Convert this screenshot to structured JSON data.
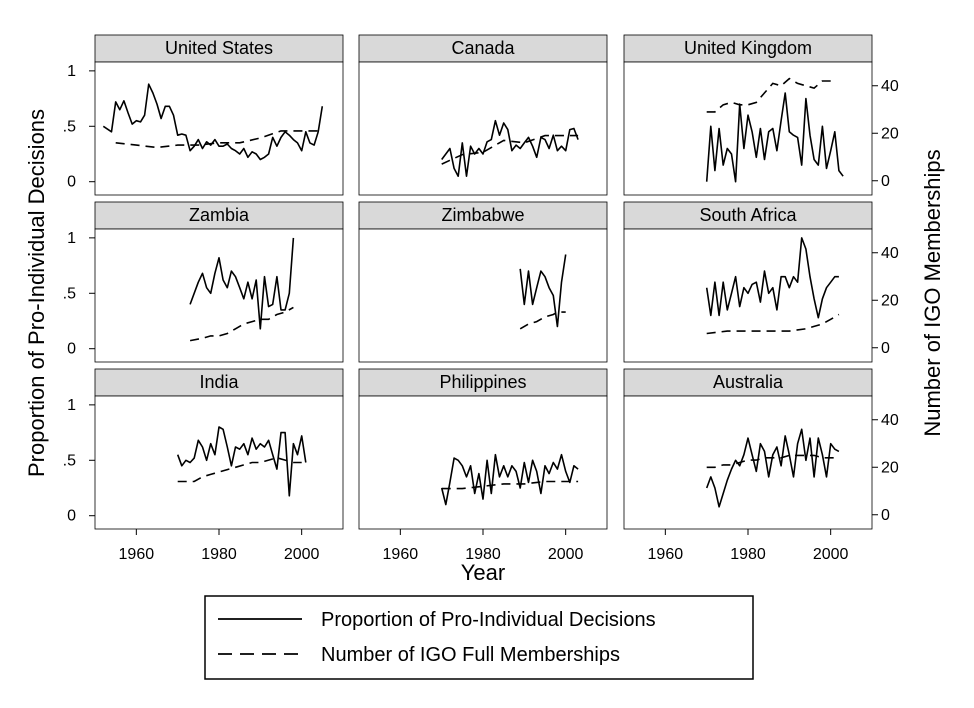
{
  "chart_data": {
    "type": "line",
    "xlabel": "Year",
    "ylabel_left": "Proportion of Pro-Individual Decisions",
    "ylabel_right": "Number of IGO Memberships",
    "xlim": [
      1950,
      2010
    ],
    "x_ticks": [
      1960,
      1980,
      2000
    ],
    "y_left_lim": [
      -0.12,
      1.08
    ],
    "y_left_ticks": [
      {
        "v": 0,
        "label": "0"
      },
      {
        "v": 0.5,
        "label": ".5"
      },
      {
        "v": 1,
        "label": "1"
      }
    ],
    "y_right_lim": [
      -6,
      50
    ],
    "y_right_ticks": [
      {
        "v": 0,
        "label": "0"
      },
      {
        "v": 20,
        "label": "20"
      },
      {
        "v": 40,
        "label": "40"
      }
    ],
    "grid": false,
    "legend": {
      "placement": "bottom",
      "entries": [
        {
          "label": "Proportion of Pro-Individual Decisions",
          "style": "solid"
        },
        {
          "label": "Number of IGO Full Memberships",
          "style": "dashed"
        }
      ]
    },
    "panels": [
      {
        "name": "United States",
        "proportion": {
          "x": [
            1952,
            1954,
            1955,
            1956,
            1957,
            1958,
            1959,
            1960,
            1961,
            1962,
            1963,
            1964,
            1965,
            1966,
            1967,
            1968,
            1969,
            1970,
            1971,
            1972,
            1973,
            1974,
            1975,
            1976,
            1977,
            1978,
            1979,
            1980,
            1981,
            1982,
            1983,
            1984,
            1985,
            1986,
            1987,
            1988,
            1989,
            1990,
            1991,
            1992,
            1993,
            1994,
            1995,
            1996,
            1997,
            1998,
            1999,
            2000,
            2001,
            2002,
            2003,
            2004,
            2005
          ],
          "y": [
            0.5,
            0.45,
            0.72,
            0.65,
            0.73,
            0.62,
            0.52,
            0.55,
            0.54,
            0.6,
            0.88,
            0.8,
            0.7,
            0.57,
            0.68,
            0.68,
            0.6,
            0.42,
            0.43,
            0.42,
            0.28,
            0.32,
            0.38,
            0.3,
            0.36,
            0.33,
            0.38,
            0.32,
            0.32,
            0.34,
            0.3,
            0.28,
            0.25,
            0.3,
            0.22,
            0.27,
            0.25,
            0.2,
            0.22,
            0.25,
            0.4,
            0.32,
            0.4,
            0.45,
            0.42,
            0.38,
            0.35,
            0.28,
            0.45,
            0.35,
            0.33,
            0.45,
            0.68
          ]
        },
        "igo": {
          "x": [
            1955,
            1960,
            1965,
            1970,
            1975,
            1980,
            1985,
            1990,
            1995,
            2000,
            2005
          ],
          "y": [
            16,
            15,
            14,
            15,
            15,
            16,
            16,
            18,
            21,
            21,
            21
          ]
        }
      },
      {
        "name": "Canada",
        "proportion": {
          "x": [
            1970,
            1971,
            1972,
            1973,
            1974,
            1975,
            1976,
            1977,
            1978,
            1979,
            1980,
            1981,
            1982,
            1983,
            1984,
            1985,
            1986,
            1987,
            1988,
            1989,
            1990,
            1991,
            1992,
            1993,
            1994,
            1995,
            1996,
            1997,
            1998,
            1999,
            2000,
            2001,
            2002,
            2003
          ],
          "y": [
            0.2,
            0.25,
            0.3,
            0.12,
            0.05,
            0.35,
            0.05,
            0.32,
            0.25,
            0.3,
            0.25,
            0.36,
            0.38,
            0.55,
            0.42,
            0.53,
            0.47,
            0.28,
            0.33,
            0.3,
            0.35,
            0.4,
            0.32,
            0.22,
            0.4,
            0.38,
            0.3,
            0.42,
            0.28,
            0.32,
            0.28,
            0.47,
            0.48,
            0.38
          ]
        },
        "igo": {
          "x": [
            1970,
            1975,
            1980,
            1985,
            1990,
            1995,
            2000,
            2003
          ],
          "y": [
            7,
            11,
            12,
            17,
            16,
            19,
            19,
            19
          ]
        }
      },
      {
        "name": "United Kingdom",
        "proportion": {
          "x": [
            1970,
            1971,
            1972,
            1973,
            1974,
            1975,
            1976,
            1977,
            1978,
            1979,
            1980,
            1981,
            1982,
            1983,
            1984,
            1985,
            1986,
            1987,
            1988,
            1989,
            1990,
            1991,
            1992,
            1993,
            1994,
            1995,
            1996,
            1997,
            1998,
            1999,
            2000,
            2001,
            2002,
            2003
          ],
          "y": [
            0.0,
            0.5,
            0.1,
            0.48,
            0.15,
            0.3,
            0.25,
            0.0,
            0.7,
            0.3,
            0.6,
            0.45,
            0.22,
            0.48,
            0.2,
            0.45,
            0.48,
            0.28,
            0.55,
            0.8,
            0.45,
            0.42,
            0.4,
            0.15,
            0.75,
            0.42,
            0.2,
            0.15,
            0.5,
            0.12,
            0.28,
            0.45,
            0.1,
            0.05
          ]
        },
        "igo": {
          "x": [
            1970,
            1972,
            1974,
            1976,
            1978,
            1980,
            1982,
            1984,
            1986,
            1988,
            1990,
            1992,
            1994,
            1996,
            1998,
            2000
          ],
          "y": [
            29,
            29,
            32,
            33,
            32,
            32,
            33,
            37,
            41,
            40,
            43,
            41,
            40,
            39,
            42,
            42
          ]
        }
      },
      {
        "name": "Zambia",
        "proportion": {
          "x": [
            1973,
            1975,
            1976,
            1977,
            1978,
            1979,
            1980,
            1981,
            1982,
            1983,
            1984,
            1985,
            1986,
            1987,
            1988,
            1989,
            1990,
            1991,
            1992,
            1993,
            1994,
            1995,
            1996,
            1997,
            1998
          ],
          "y": [
            0.4,
            0.6,
            0.68,
            0.55,
            0.5,
            0.68,
            0.82,
            0.62,
            0.55,
            0.7,
            0.65,
            0.55,
            0.45,
            0.6,
            0.45,
            0.62,
            0.18,
            0.65,
            0.38,
            0.4,
            0.65,
            0.35,
            0.35,
            0.5,
            1.0
          ]
        },
        "igo": {
          "x": [
            1973,
            1976,
            1978,
            1980,
            1982,
            1984,
            1986,
            1988,
            1990,
            1992,
            1994,
            1996,
            1998
          ],
          "y": [
            3,
            4,
            5,
            5,
            6,
            8,
            10,
            11,
            12,
            12,
            14,
            15,
            17
          ]
        }
      },
      {
        "name": "Zimbabwe",
        "proportion": {
          "x": [
            1989,
            1990,
            1991,
            1992,
            1993,
            1994,
            1995,
            1996,
            1997,
            1998,
            1999,
            2000
          ],
          "y": [
            0.72,
            0.4,
            0.7,
            0.4,
            0.55,
            0.7,
            0.65,
            0.55,
            0.48,
            0.2,
            0.6,
            0.85
          ]
        },
        "igo": {
          "x": [
            1989,
            1991,
            1993,
            1995,
            1997,
            1998,
            2000
          ],
          "y": [
            8,
            10,
            11,
            13,
            14,
            15,
            15
          ]
        }
      },
      {
        "name": "South Africa",
        "proportion": {
          "x": [
            1970,
            1971,
            1972,
            1973,
            1974,
            1975,
            1976,
            1977,
            1978,
            1979,
            1980,
            1981,
            1982,
            1983,
            1984,
            1985,
            1986,
            1987,
            1988,
            1989,
            1990,
            1991,
            1992,
            1993,
            1994,
            1995,
            1996,
            1997,
            1998,
            1999,
            2000,
            2001,
            2002
          ],
          "y": [
            0.55,
            0.3,
            0.6,
            0.3,
            0.6,
            0.35,
            0.5,
            0.65,
            0.38,
            0.55,
            0.5,
            0.58,
            0.6,
            0.42,
            0.7,
            0.5,
            0.55,
            0.35,
            0.65,
            0.65,
            0.55,
            0.65,
            0.6,
            1.0,
            0.9,
            0.65,
            0.45,
            0.28,
            0.45,
            0.55,
            0.6,
            0.65,
            0.65
          ]
        },
        "igo": {
          "x": [
            1970,
            1975,
            1980,
            1985,
            1990,
            1994,
            1996,
            1998,
            2000,
            2002
          ],
          "y": [
            6,
            7,
            7,
            7,
            7,
            8,
            9,
            10,
            12,
            14
          ]
        }
      },
      {
        "name": "India",
        "proportion": {
          "x": [
            1970,
            1971,
            1972,
            1973,
            1974,
            1975,
            1976,
            1977,
            1978,
            1979,
            1980,
            1981,
            1982,
            1983,
            1984,
            1985,
            1986,
            1987,
            1988,
            1989,
            1990,
            1991,
            1992,
            1993,
            1994,
            1995,
            1996,
            1997,
            1998,
            1999,
            2000,
            2001
          ],
          "y": [
            0.55,
            0.45,
            0.5,
            0.48,
            0.52,
            0.68,
            0.62,
            0.5,
            0.65,
            0.55,
            0.8,
            0.78,
            0.62,
            0.45,
            0.62,
            0.6,
            0.65,
            0.55,
            0.7,
            0.6,
            0.65,
            0.62,
            0.68,
            0.55,
            0.42,
            0.75,
            0.75,
            0.18,
            0.65,
            0.55,
            0.72,
            0.48
          ]
        },
        "igo": {
          "x": [
            1970,
            1972,
            1974,
            1976,
            1978,
            1980,
            1982,
            1984,
            1986,
            1988,
            1990,
            1992,
            1994,
            1996,
            1998,
            2000
          ],
          "y": [
            14,
            14,
            14,
            16,
            17,
            18,
            19,
            20,
            21,
            22,
            22,
            23,
            24,
            23,
            22,
            22
          ]
        }
      },
      {
        "name": "Philippines",
        "proportion": {
          "x": [
            1970,
            1971,
            1972,
            1973,
            1974,
            1975,
            1976,
            1977,
            1978,
            1979,
            1980,
            1981,
            1982,
            1983,
            1984,
            1985,
            1986,
            1987,
            1988,
            1989,
            1990,
            1991,
            1992,
            1993,
            1994,
            1995,
            1996,
            1997,
            1998,
            1999,
            2000,
            2001,
            2002,
            2003
          ],
          "y": [
            0.25,
            0.1,
            0.3,
            0.52,
            0.5,
            0.45,
            0.35,
            0.45,
            0.2,
            0.38,
            0.15,
            0.5,
            0.2,
            0.55,
            0.35,
            0.45,
            0.35,
            0.45,
            0.4,
            0.25,
            0.48,
            0.3,
            0.5,
            0.4,
            0.2,
            0.45,
            0.38,
            0.48,
            0.42,
            0.55,
            0.4,
            0.3,
            0.45,
            0.42
          ]
        },
        "igo": {
          "x": [
            1970,
            1975,
            1980,
            1985,
            1990,
            1995,
            2000,
            2003
          ],
          "y": [
            11,
            11,
            12,
            13,
            13,
            14,
            14,
            14
          ]
        }
      },
      {
        "name": "Australia",
        "proportion": {
          "x": [
            1970,
            1971,
            1972,
            1973,
            1974,
            1975,
            1976,
            1977,
            1978,
            1979,
            1980,
            1981,
            1982,
            1983,
            1984,
            1985,
            1986,
            1987,
            1988,
            1989,
            1990,
            1991,
            1992,
            1993,
            1994,
            1995,
            1996,
            1997,
            1998,
            1999,
            2000,
            2001,
            2002
          ],
          "y": [
            0.25,
            0.35,
            0.25,
            0.08,
            0.2,
            0.32,
            0.42,
            0.5,
            0.45,
            0.55,
            0.7,
            0.55,
            0.4,
            0.65,
            0.58,
            0.35,
            0.55,
            0.62,
            0.45,
            0.72,
            0.55,
            0.35,
            0.65,
            0.78,
            0.5,
            0.7,
            0.35,
            0.7,
            0.55,
            0.35,
            0.65,
            0.6,
            0.58
          ]
        },
        "igo": {
          "x": [
            1970,
            1972,
            1974,
            1976,
            1978,
            1980,
            1982,
            1984,
            1986,
            1988,
            1990,
            1992,
            1994,
            1996,
            1998,
            2000,
            2002
          ],
          "y": [
            20,
            20,
            21,
            21,
            22,
            23,
            23,
            24,
            24,
            24,
            25,
            25,
            25,
            25,
            24,
            24,
            24
          ]
        }
      }
    ]
  }
}
